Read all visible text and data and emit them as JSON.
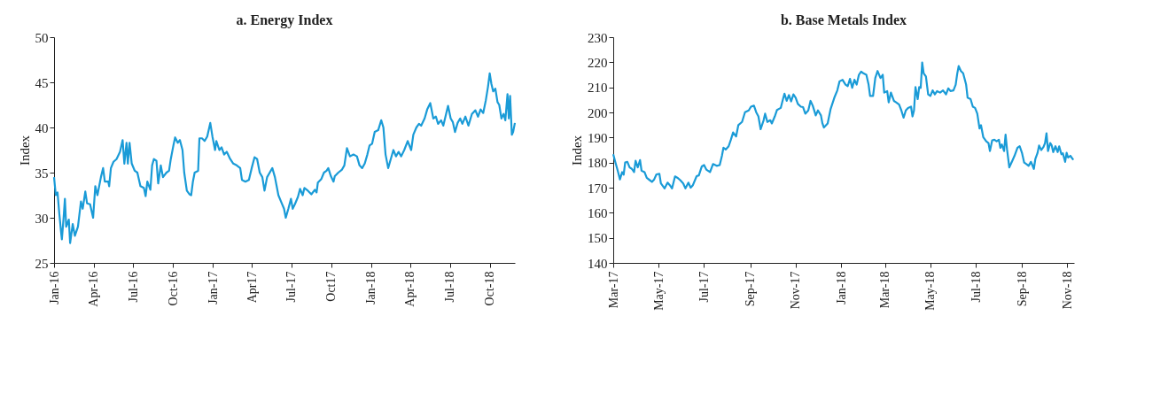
{
  "chart_data": [
    {
      "type": "line",
      "title": "a. Energy Index",
      "ylabel": "Index",
      "xlim": [
        "2016-01-01",
        "2018-11-28"
      ],
      "ylim": [
        25,
        50
      ],
      "yticks": [
        25,
        30,
        35,
        40,
        45,
        50
      ],
      "xticks": [
        {
          "value": "2016-01-01",
          "label": "Jan-16"
        },
        {
          "value": "2016-04-01",
          "label": "Apr-16"
        },
        {
          "value": "2016-07-01",
          "label": "Jul-16"
        },
        {
          "value": "2016-10-01",
          "label": "Oct-16"
        },
        {
          "value": "2017-01-01",
          "label": "Jan-17"
        },
        {
          "value": "2017-04-01",
          "label": "Apr17"
        },
        {
          "value": "2017-07-01",
          "label": "Jul-17"
        },
        {
          "value": "2017-10-01",
          "label": "Oct17"
        },
        {
          "value": "2018-01-01",
          "label": "Jan-18"
        },
        {
          "value": "2018-04-01",
          "label": "Apr-18"
        },
        {
          "value": "2018-07-01",
          "label": "Jul-18"
        },
        {
          "value": "2018-10-01",
          "label": "Oct-18"
        }
      ],
      "grid": false,
      "line_style": "solid",
      "marker": "none",
      "x": [
        "2016-01-01",
        "2016-01-05",
        "2016-01-09",
        "2016-01-13",
        "2016-01-17",
        "2016-01-19",
        "2016-01-23",
        "2016-01-26",
        "2016-01-29",
        "2016-02-04",
        "2016-02-07",
        "2016-02-13",
        "2016-02-18",
        "2016-02-25",
        "2016-03-03",
        "2016-03-07",
        "2016-03-13",
        "2016-03-17",
        "2016-03-24",
        "2016-03-31",
        "2016-04-05",
        "2016-04-10",
        "2016-04-18",
        "2016-04-23",
        "2016-04-27",
        "2016-05-05",
        "2016-05-07",
        "2016-05-11",
        "2016-05-17",
        "2016-05-24",
        "2016-06-01",
        "2016-06-07",
        "2016-06-11",
        "2016-06-16",
        "2016-06-19",
        "2016-06-23",
        "2016-06-28",
        "2016-07-05",
        "2016-07-11",
        "2016-07-18",
        "2016-07-26",
        "2016-07-30",
        "2016-08-03",
        "2016-08-10",
        "2016-08-14",
        "2016-08-18",
        "2016-08-24",
        "2016-08-28",
        "2016-09-03",
        "2016-09-08",
        "2016-09-16",
        "2016-09-22",
        "2016-09-26",
        "2016-10-02",
        "2016-10-06",
        "2016-10-12",
        "2016-10-17",
        "2016-10-23",
        "2016-10-27",
        "2016-11-02",
        "2016-11-08",
        "2016-11-12",
        "2016-11-16",
        "2016-11-20",
        "2016-11-28",
        "2016-12-01",
        "2016-12-07",
        "2016-12-13",
        "2016-12-19",
        "2016-12-26",
        "2016-12-31",
        "2017-01-06",
        "2017-01-09",
        "2017-01-16",
        "2017-01-21",
        "2017-01-27",
        "2017-02-02",
        "2017-02-10",
        "2017-02-17",
        "2017-02-25",
        "2017-03-05",
        "2017-03-09",
        "2017-03-17",
        "2017-03-25",
        "2017-04-01",
        "2017-04-07",
        "2017-04-13",
        "2017-04-19",
        "2017-04-25",
        "2017-04-30",
        "2017-05-06",
        "2017-05-12",
        "2017-05-18",
        "2017-05-24",
        "2017-05-28",
        "2017-06-01",
        "2017-06-07",
        "2017-06-14",
        "2017-06-18",
        "2017-06-24",
        "2017-06-30",
        "2017-07-04",
        "2017-07-09",
        "2017-07-16",
        "2017-07-21",
        "2017-07-27",
        "2017-07-31",
        "2017-08-08",
        "2017-08-16",
        "2017-08-24",
        "2017-08-28",
        "2017-08-31",
        "2017-09-08",
        "2017-09-14",
        "2017-09-20",
        "2017-09-24",
        "2017-09-30",
        "2017-10-06",
        "2017-10-09",
        "2017-10-17",
        "2017-10-25",
        "2017-10-31",
        "2017-11-06",
        "2017-11-13",
        "2017-11-21",
        "2017-11-29",
        "2017-12-05",
        "2017-12-11",
        "2017-12-17",
        "2017-12-23",
        "2017-12-28",
        "2018-01-03",
        "2018-01-09",
        "2018-01-17",
        "2018-01-24",
        "2018-01-29",
        "2018-02-03",
        "2018-02-09",
        "2018-02-15",
        "2018-02-21",
        "2018-02-27",
        "2018-03-05",
        "2018-03-11",
        "2018-03-18",
        "2018-03-26",
        "2018-04-03",
        "2018-04-08",
        "2018-04-15",
        "2018-04-21",
        "2018-04-26",
        "2018-05-04",
        "2018-05-10",
        "2018-05-17",
        "2018-05-24",
        "2018-05-30",
        "2018-06-04",
        "2018-06-11",
        "2018-06-16",
        "2018-06-22",
        "2018-06-27",
        "2018-07-03",
        "2018-07-08",
        "2018-07-13",
        "2018-07-19",
        "2018-07-25",
        "2018-07-30",
        "2018-08-06",
        "2018-08-13",
        "2018-08-21",
        "2018-08-29",
        "2018-09-04",
        "2018-09-10",
        "2018-09-16",
        "2018-09-22",
        "2018-09-27",
        "2018-10-01",
        "2018-10-05",
        "2018-10-09",
        "2018-10-14",
        "2018-10-19",
        "2018-10-23",
        "2018-10-28",
        "2018-11-02",
        "2018-11-06",
        "2018-11-11",
        "2018-11-14",
        "2018-11-17",
        "2018-11-21",
        "2018-11-24",
        "2018-11-28"
      ],
      "series": [
        {
          "color": "#1a9bd7",
          "values": [
            34.5,
            32.5,
            32.8,
            30.5,
            28.5,
            27.6,
            30.0,
            32.1,
            29.0,
            29.8,
            27.2,
            29.3,
            28.0,
            29.0,
            31.8,
            31.0,
            32.9,
            31.6,
            31.5,
            30.0,
            33.5,
            32.5,
            34.5,
            35.5,
            34.0,
            34.0,
            33.5,
            35.5,
            36.2,
            36.5,
            37.3,
            38.6,
            36.0,
            38.3,
            36.0,
            38.3,
            36.0,
            35.2,
            35.0,
            33.5,
            33.3,
            32.4,
            34.0,
            33.1,
            35.8,
            36.5,
            36.3,
            33.8,
            35.8,
            34.5,
            35.0,
            35.2,
            36.5,
            38.0,
            38.9,
            38.3,
            38.6,
            37.5,
            35.0,
            33.0,
            32.6,
            32.5,
            34.0,
            35.0,
            35.2,
            38.8,
            38.8,
            38.5,
            39.0,
            40.5,
            39.0,
            37.5,
            38.5,
            37.5,
            37.8,
            37.0,
            37.3,
            36.5,
            36.0,
            35.8,
            35.5,
            34.2,
            34.0,
            34.2,
            35.6,
            36.7,
            36.5,
            35.0,
            34.5,
            33.0,
            34.5,
            35.0,
            35.5,
            34.5,
            33.5,
            32.5,
            31.8,
            31.0,
            30.0,
            31.0,
            32.1,
            31.0,
            31.5,
            32.3,
            33.2,
            32.5,
            33.3,
            33.0,
            32.6,
            33.1,
            32.8,
            33.9,
            34.3,
            35.0,
            35.2,
            35.5,
            34.6,
            34.0,
            34.6,
            35.0,
            35.3,
            35.8,
            37.7,
            36.8,
            37.0,
            36.8,
            35.8,
            35.5,
            36.0,
            37.0,
            38.0,
            38.2,
            39.5,
            39.7,
            40.8,
            40.0,
            37.0,
            35.5,
            36.5,
            37.5,
            36.8,
            37.3,
            36.8,
            37.5,
            38.5,
            37.5,
            39.2,
            40.0,
            40.4,
            40.2,
            41.0,
            42.0,
            42.7,
            41.0,
            41.2,
            40.4,
            40.8,
            40.2,
            41.4,
            42.4,
            41.0,
            40.6,
            39.5,
            40.5,
            41.0,
            40.4,
            41.2,
            40.2,
            41.5,
            41.9,
            41.2,
            42.0,
            41.6,
            43.0,
            44.5,
            46.0,
            44.8,
            44.0,
            44.3,
            42.8,
            42.5,
            41.0,
            41.5,
            40.8,
            43.7,
            41.0,
            43.5,
            39.2,
            39.5,
            40.5
          ]
        }
      ]
    },
    {
      "type": "line",
      "title": "b. Base Metals Index",
      "ylabel": "Index",
      "xlim": [
        "2017-03-01",
        "2018-11-10"
      ],
      "ylim": [
        140,
        230
      ],
      "yticks": [
        140,
        150,
        160,
        170,
        180,
        190,
        200,
        210,
        220,
        230
      ],
      "xticks": [
        {
          "value": "2017-03-01",
          "label": "Mar-17"
        },
        {
          "value": "2017-05-01",
          "label": "May-17"
        },
        {
          "value": "2017-07-01",
          "label": "Jul-17"
        },
        {
          "value": "2017-09-01",
          "label": "Sep-17"
        },
        {
          "value": "2017-11-01",
          "label": "Nov-17"
        },
        {
          "value": "2018-01-01",
          "label": "Jan-18"
        },
        {
          "value": "2018-03-01",
          "label": "Mar-18"
        },
        {
          "value": "2018-05-01",
          "label": "May-18"
        },
        {
          "value": "2018-07-01",
          "label": "Jul-18"
        },
        {
          "value": "2018-09-01",
          "label": "Sep-18"
        },
        {
          "value": "2018-11-01",
          "label": "Nov-18"
        }
      ],
      "grid": false,
      "line_style": "solid",
      "marker": "none",
      "x": [
        "2017-03-01",
        "2017-03-04",
        "2017-03-07",
        "2017-03-10",
        "2017-03-13",
        "2017-03-15",
        "2017-03-17",
        "2017-03-20",
        "2017-03-23",
        "2017-03-26",
        "2017-03-29",
        "2017-03-31",
        "2017-04-03",
        "2017-04-06",
        "2017-04-08",
        "2017-04-12",
        "2017-04-15",
        "2017-04-19",
        "2017-04-22",
        "2017-04-25",
        "2017-04-28",
        "2017-05-02",
        "2017-05-04",
        "2017-05-09",
        "2017-05-13",
        "2017-05-16",
        "2017-05-19",
        "2017-05-23",
        "2017-05-26",
        "2017-05-30",
        "2017-06-03",
        "2017-06-06",
        "2017-06-10",
        "2017-06-13",
        "2017-06-16",
        "2017-06-21",
        "2017-06-24",
        "2017-06-28",
        "2017-07-01",
        "2017-07-04",
        "2017-07-09",
        "2017-07-13",
        "2017-07-18",
        "2017-07-22",
        "2017-07-25",
        "2017-07-27",
        "2017-07-30",
        "2017-08-03",
        "2017-08-06",
        "2017-08-09",
        "2017-08-13",
        "2017-08-16",
        "2017-08-21",
        "2017-08-25",
        "2017-08-30",
        "2017-09-02",
        "2017-09-06",
        "2017-09-09",
        "2017-09-12",
        "2017-09-15",
        "2017-09-19",
        "2017-09-21",
        "2017-09-24",
        "2017-09-28",
        "2017-09-30",
        "2017-10-04",
        "2017-10-07",
        "2017-10-12",
        "2017-10-15",
        "2017-10-17",
        "2017-10-20",
        "2017-10-23",
        "2017-10-26",
        "2017-10-29",
        "2017-11-01",
        "2017-11-04",
        "2017-11-08",
        "2017-11-11",
        "2017-11-14",
        "2017-11-18",
        "2017-11-21",
        "2017-11-24",
        "2017-11-28",
        "2017-12-01",
        "2017-12-05",
        "2017-12-07",
        "2017-12-09",
        "2017-12-14",
        "2017-12-18",
        "2017-12-23",
        "2017-12-27",
        "2017-12-30",
        "2018-01-03",
        "2018-01-07",
        "2018-01-10",
        "2018-01-13",
        "2018-01-16",
        "2018-01-19",
        "2018-01-22",
        "2018-01-25",
        "2018-01-28",
        "2018-01-31",
        "2018-02-04",
        "2018-02-07",
        "2018-02-09",
        "2018-02-13",
        "2018-02-16",
        "2018-02-19",
        "2018-02-23",
        "2018-02-26",
        "2018-02-28",
        "2018-03-04",
        "2018-03-06",
        "2018-03-09",
        "2018-03-13",
        "2018-03-16",
        "2018-03-20",
        "2018-03-23",
        "2018-03-26",
        "2018-03-29",
        "2018-04-01",
        "2018-04-05",
        "2018-04-07",
        "2018-04-09",
        "2018-04-11",
        "2018-04-14",
        "2018-04-16",
        "2018-04-18",
        "2018-04-20",
        "2018-04-22",
        "2018-04-25",
        "2018-04-28",
        "2018-05-01",
        "2018-05-04",
        "2018-05-07",
        "2018-05-10",
        "2018-05-14",
        "2018-05-18",
        "2018-05-22",
        "2018-05-25",
        "2018-05-28",
        "2018-06-01",
        "2018-06-04",
        "2018-06-06",
        "2018-06-08",
        "2018-06-11",
        "2018-06-14",
        "2018-06-18",
        "2018-06-20",
        "2018-06-24",
        "2018-06-27",
        "2018-06-30",
        "2018-07-03",
        "2018-07-06",
        "2018-07-08",
        "2018-07-11",
        "2018-07-15",
        "2018-07-18",
        "2018-07-20",
        "2018-07-23",
        "2018-07-26",
        "2018-07-29",
        "2018-08-01",
        "2018-08-03",
        "2018-08-05",
        "2018-08-08",
        "2018-08-10",
        "2018-08-12",
        "2018-08-15",
        "2018-08-19",
        "2018-08-22",
        "2018-08-26",
        "2018-08-29",
        "2018-09-01",
        "2018-09-04",
        "2018-09-07",
        "2018-09-10",
        "2018-09-13",
        "2018-09-15",
        "2018-09-17",
        "2018-09-19",
        "2018-09-22",
        "2018-09-24",
        "2018-09-27",
        "2018-09-30",
        "2018-10-02",
        "2018-10-04",
        "2018-10-06",
        "2018-10-09",
        "2018-10-11",
        "2018-10-13",
        "2018-10-16",
        "2018-10-19",
        "2018-10-21",
        "2018-10-24",
        "2018-10-26",
        "2018-10-29",
        "2018-10-31",
        "2018-11-02",
        "2018-11-05",
        "2018-11-09"
      ],
      "series": [
        {
          "color": "#1a9bd7",
          "values": [
            183.3,
            180,
            176.8,
            173.3,
            176.2,
            175.2,
            180,
            180.3,
            178.1,
            177.5,
            176.2,
            180.7,
            178.1,
            181,
            176.8,
            176.2,
            173.9,
            173,
            172.3,
            173.3,
            175.3,
            175.5,
            171.7,
            169.7,
            172,
            171,
            169.7,
            174.5,
            174,
            173,
            171.7,
            169.7,
            172,
            170,
            171,
            174.6,
            174.9,
            178.5,
            179,
            177.2,
            176.2,
            179.4,
            178.7,
            179,
            182.7,
            185.9,
            185.2,
            186.5,
            189.1,
            192,
            190.4,
            194.9,
            196.2,
            200.1,
            200.8,
            202.3,
            202.7,
            200.1,
            198.4,
            193.3,
            196.9,
            199.5,
            196.2,
            196.9,
            195.6,
            198.4,
            201,
            201.8,
            205.3,
            207.5,
            204.6,
            206.9,
            204.4,
            207.2,
            205.9,
            203.4,
            202.3,
            202.1,
            199.5,
            200.8,
            204.6,
            202.7,
            198.8,
            200.8,
            198.8,
            195.6,
            194,
            195.6,
            201.4,
            205.9,
            208.8,
            212.4,
            213,
            211.1,
            210.5,
            213.4,
            209.8,
            213,
            211.1,
            215,
            216.3,
            215.6,
            215,
            211.1,
            206.6,
            206.6,
            213.7,
            216.5,
            213.7,
            215,
            207.9,
            208.5,
            204,
            207.9,
            204.6,
            204,
            203.1,
            200.8,
            197.9,
            200.8,
            201.8,
            202.3,
            198.4,
            200.8,
            210.1,
            205.3,
            210.1,
            209.8,
            219.9,
            215.6,
            214.3,
            207.2,
            206.6,
            208.8,
            207.2,
            208.5,
            207.9,
            208.8,
            207.2,
            209.6,
            208.5,
            208.8,
            211.1,
            215.3,
            218.5,
            216.5,
            215.6,
            211.1,
            205.9,
            205.3,
            202.3,
            201.8,
            199.5,
            193.6,
            194.9,
            190.2,
            188.5,
            187.8,
            184.6,
            188.9,
            189.1,
            188.5,
            189.1,
            185.9,
            187.2,
            184.6,
            191.1,
            185.2,
            178.1,
            180.7,
            182.7,
            185.9,
            186.5,
            183.9,
            180,
            179.4,
            178.7,
            180.3,
            179,
            177.5,
            181.4,
            183.9,
            186.8,
            185,
            186.3,
            187.8,
            191.7,
            184.6,
            187.8,
            186.8,
            184.2,
            186.5,
            184.2,
            186.5,
            183.3,
            183.7,
            180.3,
            183.9,
            182,
            182.7,
            181.1
          ]
        }
      ]
    }
  ]
}
